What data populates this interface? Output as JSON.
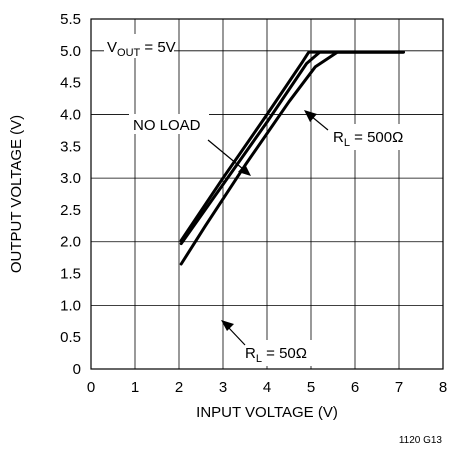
{
  "chart_data": {
    "type": "line",
    "xlabel": "INPUT VOLTAGE (V)",
    "ylabel": "OUTPUT VOLTAGE (V)",
    "xlim": [
      0,
      8
    ],
    "ylim": [
      0,
      5.5
    ],
    "x_ticks": [
      "0",
      "1",
      "2",
      "3",
      "4",
      "5",
      "6",
      "7",
      "8"
    ],
    "y_ticks": [
      "0",
      "0.5",
      "1.0",
      "1.5",
      "2.0",
      "2.5",
      "3.0",
      "3.5",
      "4.0",
      "4.5",
      "5.0",
      "5.5"
    ],
    "grid": true,
    "series": [
      {
        "name": "NO LOAD",
        "points": [
          [
            2.05,
            2.02
          ],
          [
            3.0,
            3.0
          ],
          [
            4.0,
            4.0
          ],
          [
            4.8,
            4.82
          ],
          [
            4.95,
            4.98
          ],
          [
            7.1,
            4.98
          ]
        ]
      },
      {
        "name": "R_L = 500Ω",
        "points": [
          [
            2.05,
            1.97
          ],
          [
            3.0,
            2.9
          ],
          [
            4.0,
            3.88
          ],
          [
            4.9,
            4.8
          ],
          [
            5.2,
            4.98
          ],
          [
            7.1,
            4.98
          ]
        ]
      },
      {
        "name": "R_L = 50Ω",
        "points": [
          [
            2.05,
            1.65
          ],
          [
            2.6,
            2.25
          ],
          [
            3.5,
            3.2
          ],
          [
            4.5,
            4.2
          ],
          [
            5.1,
            4.75
          ],
          [
            5.6,
            4.98
          ],
          [
            7.1,
            4.98
          ]
        ]
      }
    ],
    "annotations": {
      "condition": {
        "main": "V",
        "sub": "OUT",
        "rest": " = 5V"
      },
      "no_load": "NO LOAD",
      "rl500": {
        "main": "R",
        "sub": "L",
        "rest": " = 500Ω"
      },
      "rl50": {
        "main": "R",
        "sub": "L",
        "rest": " = 50Ω"
      }
    },
    "figure_id": "1120 G13"
  }
}
